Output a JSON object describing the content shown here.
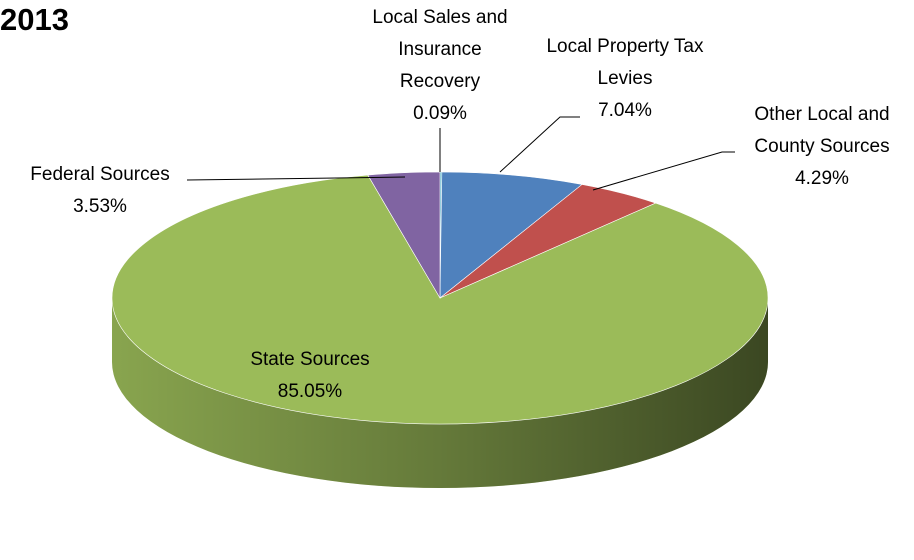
{
  "chart_data": {
    "type": "pie",
    "title": "2013",
    "categories": [
      "Local Sales and Insurance Recovery",
      "Local Property Tax Levies",
      "Other Local and County Sources",
      "State Sources",
      "Federal Sources"
    ],
    "values": [
      0.09,
      7.04,
      4.29,
      85.05,
      3.53
    ],
    "value_labels": [
      "0.09%",
      "7.04%",
      "4.29%",
      "85.05%",
      "3.53%"
    ],
    "colors": [
      "#4bacc6",
      "#4f81bd",
      "#c0504d",
      "#9bbb59",
      "#8064a2"
    ]
  }
}
